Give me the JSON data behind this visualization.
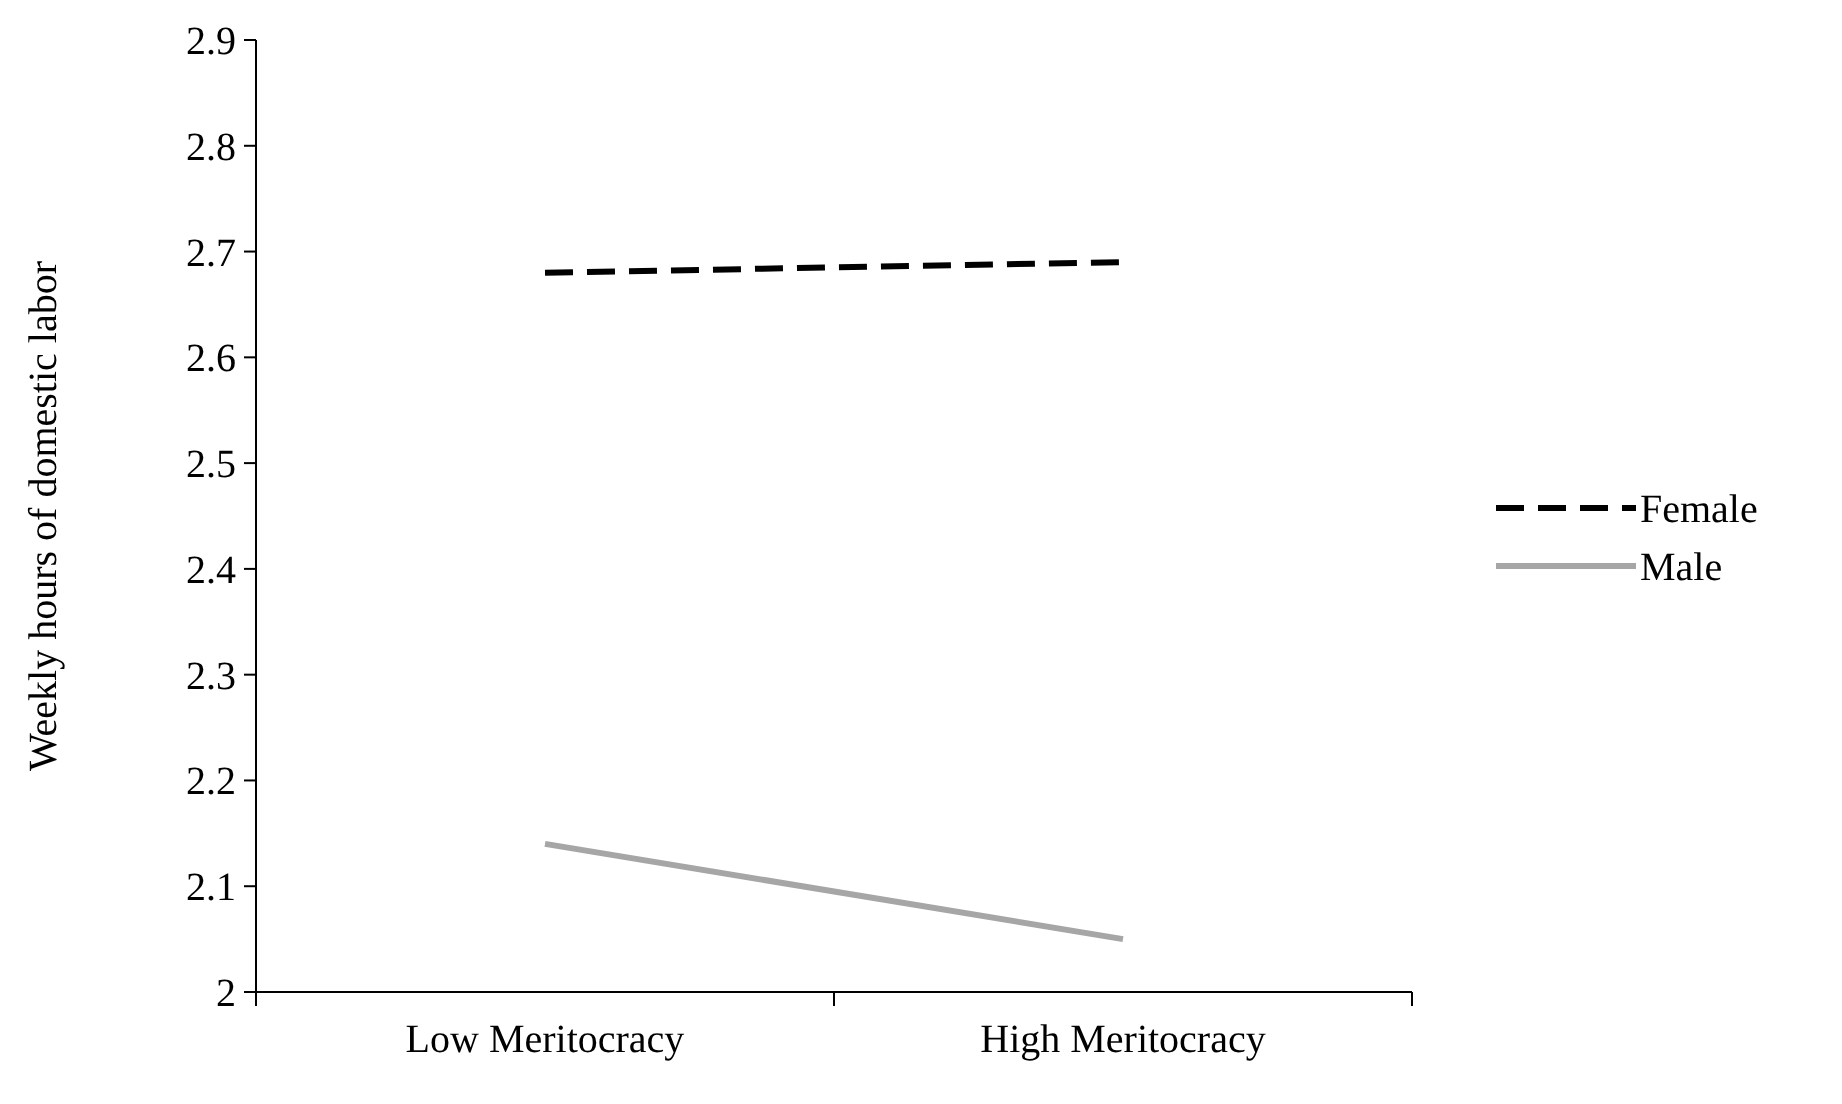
{
  "chart_data": {
    "type": "line",
    "ylabel": "Weekly hours of domestic labor",
    "categories": [
      "Low Meritocracy",
      "High Meritocracy"
    ],
    "ylim": [
      2,
      2.9
    ],
    "yticks": [
      2,
      2.1,
      2.2,
      2.3,
      2.4,
      2.5,
      2.6,
      2.7,
      2.8,
      2.9
    ],
    "grid": false,
    "legend": "right",
    "marker": "none",
    "series": [
      {
        "name": "Female",
        "color": "#000000",
        "line_style": "dashed",
        "values": [
          2.68,
          2.69
        ]
      },
      {
        "name": "Male",
        "color": "#a6a6a6",
        "line_style": "solid",
        "values": [
          2.14,
          2.05
        ]
      }
    ]
  }
}
